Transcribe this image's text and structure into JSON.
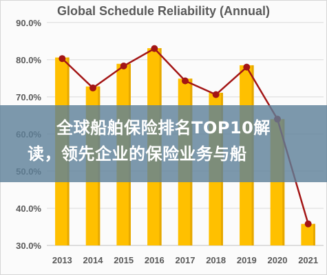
{
  "chart_data": {
    "type": "bar",
    "title": "Global Schedule Reliability (Annual)",
    "xlabel": "",
    "ylabel": "",
    "categories": [
      "2013",
      "2014",
      "2015",
      "2016",
      "2017",
      "2018",
      "2019",
      "2020",
      "2021"
    ],
    "series": [
      {
        "values": [
          80.6,
          72.8,
          78.9,
          83.1,
          74.9,
          71.1,
          78.5,
          64.0,
          35.8
        ]
      },
      {
        "values": [
          80.3,
          72.4,
          78.3,
          83.0,
          74.3,
          70.6,
          78.0,
          64.0,
          35.8
        ]
      }
    ],
    "y_ticks": [
      "30.0%",
      "40.0%",
      "50.0%",
      "60.0%",
      "70.0%",
      "80.0%",
      "90.0%"
    ],
    "ylim": [
      30,
      92
    ],
    "grid": true,
    "legend": "none"
  },
  "overlay": {
    "line1": "全球船舶保险排名TOP10解",
    "line2": "读，领先企业的保险业务与船"
  },
  "colors": {
    "bar": "#FFC000",
    "bar_shade": "#E6A800",
    "line": "#A31515",
    "grid": "#D9D9D9",
    "text": "#595959",
    "overlay": "#5C8098"
  }
}
